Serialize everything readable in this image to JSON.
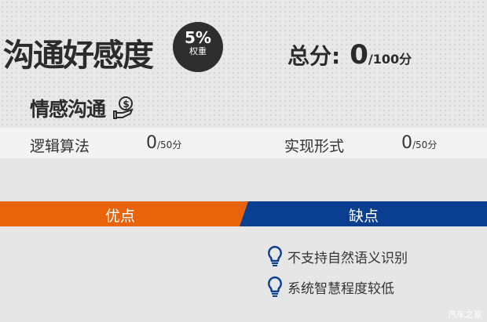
{
  "header": {
    "title": "沟通好感度",
    "badge_percent": "5%",
    "badge_label": "权重",
    "total_label": "总分:",
    "total_score": "0",
    "total_max": "/100分"
  },
  "section": {
    "title": "情感沟通",
    "icon": "hand-coin-icon"
  },
  "scores": [
    {
      "label": "逻辑算法",
      "score": "0",
      "max": "/50分"
    },
    {
      "label": "实现形式",
      "score": "0",
      "max": "/50分"
    }
  ],
  "pros": {
    "label": "优点",
    "color": "#e8630a",
    "items": []
  },
  "cons": {
    "label": "缺点",
    "color": "#0a3e91",
    "items": [
      "不支持自然语义识别",
      "系统智慧程度较低"
    ],
    "icon": "lightbulb-icon"
  },
  "watermark": "汽车之家"
}
